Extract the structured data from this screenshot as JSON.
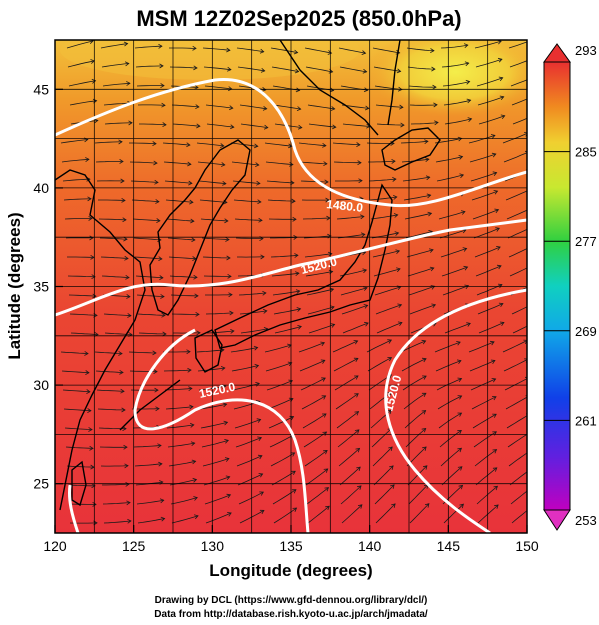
{
  "title": "MSM 12Z02Sep2025 (850.0hPa)",
  "xlabel": "Longitude (degrees)",
  "ylabel": "Latitude  (degrees)",
  "x_ticks": [
    "120",
    "125",
    "130",
    "135",
    "140",
    "145",
    "150"
  ],
  "y_ticks": [
    "25",
    "30",
    "35",
    "40",
    "45"
  ],
  "colorbar_ticks": [
    "293",
    "285",
    "277",
    "269",
    "261",
    "253"
  ],
  "contour_labels": [
    "1480.0",
    "1520.0",
    "1520.0",
    "1520.0"
  ],
  "credits": {
    "line1": "Drawing by DCL (https://www.gfd-dennou.org/library/dcl/)",
    "line2": "Data from http://database.rish.kyoto-u.ac.jp/arch/jmadata/"
  },
  "colors": {
    "warm": "#e8333a",
    "orange": "#f07a1e",
    "yellow": "#f2e83a",
    "contour": "#ffffff",
    "coast": "#000000"
  },
  "map": {
    "lon_range": [
      120,
      150
    ],
    "lat_range": [
      22.5,
      47.5
    ],
    "field": "temperature (K)",
    "colorbar_range": [
      253,
      293
    ],
    "vectors": "wind streamlines",
    "contours": "geopotential height"
  }
}
